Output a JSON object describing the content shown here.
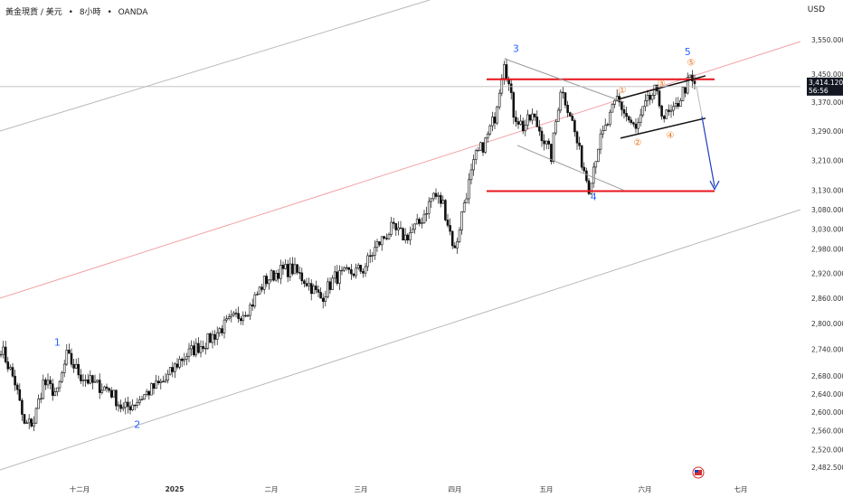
{
  "header": {
    "symbol": "黃金現貨 / 美元",
    "sep1": "•",
    "interval": "8小時",
    "sep2": "•",
    "source": "OANDA",
    "currency": "USD"
  },
  "price_tag": {
    "price": "3,414.120",
    "countdown": "56:56"
  },
  "chart_data": {
    "type": "candlestick",
    "y_tick_labels": [
      "3,550.000",
      "3,450.000",
      "3,370.000",
      "3,290.000",
      "3,210.000",
      "3,130.000",
      "3,080.000",
      "3,030.000",
      "2,980.000",
      "2,920.000",
      "2,860.000",
      "2,800.000",
      "2,740.000",
      "2,680.000",
      "2,640.000",
      "2,600.000",
      "2,560.000",
      "2,520.000",
      "2,482.500"
    ],
    "y_ticks": [
      3550,
      3450,
      3370,
      3290,
      3210,
      3130,
      3080,
      3030,
      2980,
      2920,
      2860,
      2800,
      2740,
      2680,
      2640,
      2600,
      2560,
      2520,
      2482.5
    ],
    "x_tick_labels": [
      "十二月",
      "2025",
      "二月",
      "三月",
      "四月",
      "五月",
      "六月",
      "七月"
    ],
    "scale": "log",
    "last_price": 3414.12,
    "wave_labels": [
      "1",
      "2",
      "3",
      "4",
      "5"
    ],
    "sub_wave_labels": [
      "①",
      "②",
      "③",
      "④",
      "⑤"
    ],
    "anchors": [
      {
        "i": 0,
        "p": 2745
      },
      {
        "i": 6,
        "p": 2665
      },
      {
        "i": 10,
        "p": 2570
      },
      {
        "i": 14,
        "p": 2580
      },
      {
        "i": 18,
        "p": 2665
      },
      {
        "i": 24,
        "p": 2640
      },
      {
        "i": 28,
        "p": 2725
      },
      {
        "i": 34,
        "p": 2680
      },
      {
        "i": 40,
        "p": 2660
      },
      {
        "i": 46,
        "p": 2650
      },
      {
        "i": 52,
        "p": 2605
      },
      {
        "i": 58,
        "p": 2625
      },
      {
        "i": 64,
        "p": 2650
      },
      {
        "i": 70,
        "p": 2670
      },
      {
        "i": 76,
        "p": 2715
      },
      {
        "i": 82,
        "p": 2740
      },
      {
        "i": 88,
        "p": 2760
      },
      {
        "i": 94,
        "p": 2790
      },
      {
        "i": 100,
        "p": 2815
      },
      {
        "i": 106,
        "p": 2840
      },
      {
        "i": 112,
        "p": 2900
      },
      {
        "i": 118,
        "p": 2925
      },
      {
        "i": 124,
        "p": 2930
      },
      {
        "i": 130,
        "p": 2900
      },
      {
        "i": 136,
        "p": 2860
      },
      {
        "i": 142,
        "p": 2910
      },
      {
        "i": 148,
        "p": 2920
      },
      {
        "i": 154,
        "p": 2930
      },
      {
        "i": 160,
        "p": 2990
      },
      {
        "i": 166,
        "p": 3030
      },
      {
        "i": 172,
        "p": 3010
      },
      {
        "i": 178,
        "p": 3045
      },
      {
        "i": 184,
        "p": 3120
      },
      {
        "i": 188,
        "p": 3095
      },
      {
        "i": 193,
        "p": 2975
      },
      {
        "i": 197,
        "p": 3100
      },
      {
        "i": 202,
        "p": 3220
      },
      {
        "i": 206,
        "p": 3260
      },
      {
        "i": 210,
        "p": 3330
      },
      {
        "i": 214,
        "p": 3495
      },
      {
        "i": 218,
        "p": 3340
      },
      {
        "i": 222,
        "p": 3300
      },
      {
        "i": 226,
        "p": 3330
      },
      {
        "i": 230,
        "p": 3280
      },
      {
        "i": 234,
        "p": 3220
      },
      {
        "i": 238,
        "p": 3410
      },
      {
        "i": 242,
        "p": 3340
      },
      {
        "i": 246,
        "p": 3230
      },
      {
        "i": 250,
        "p": 3140
      },
      {
        "i": 254,
        "p": 3250
      },
      {
        "i": 258,
        "p": 3310
      },
      {
        "i": 262,
        "p": 3380
      },
      {
        "i": 266,
        "p": 3330
      },
      {
        "i": 270,
        "p": 3290
      },
      {
        "i": 274,
        "p": 3360
      },
      {
        "i": 278,
        "p": 3400
      },
      {
        "i": 282,
        "p": 3330
      },
      {
        "i": 286,
        "p": 3340
      },
      {
        "i": 290,
        "p": 3400
      },
      {
        "i": 293,
        "p": 3435
      },
      {
        "i": 295,
        "p": 3414
      }
    ]
  }
}
